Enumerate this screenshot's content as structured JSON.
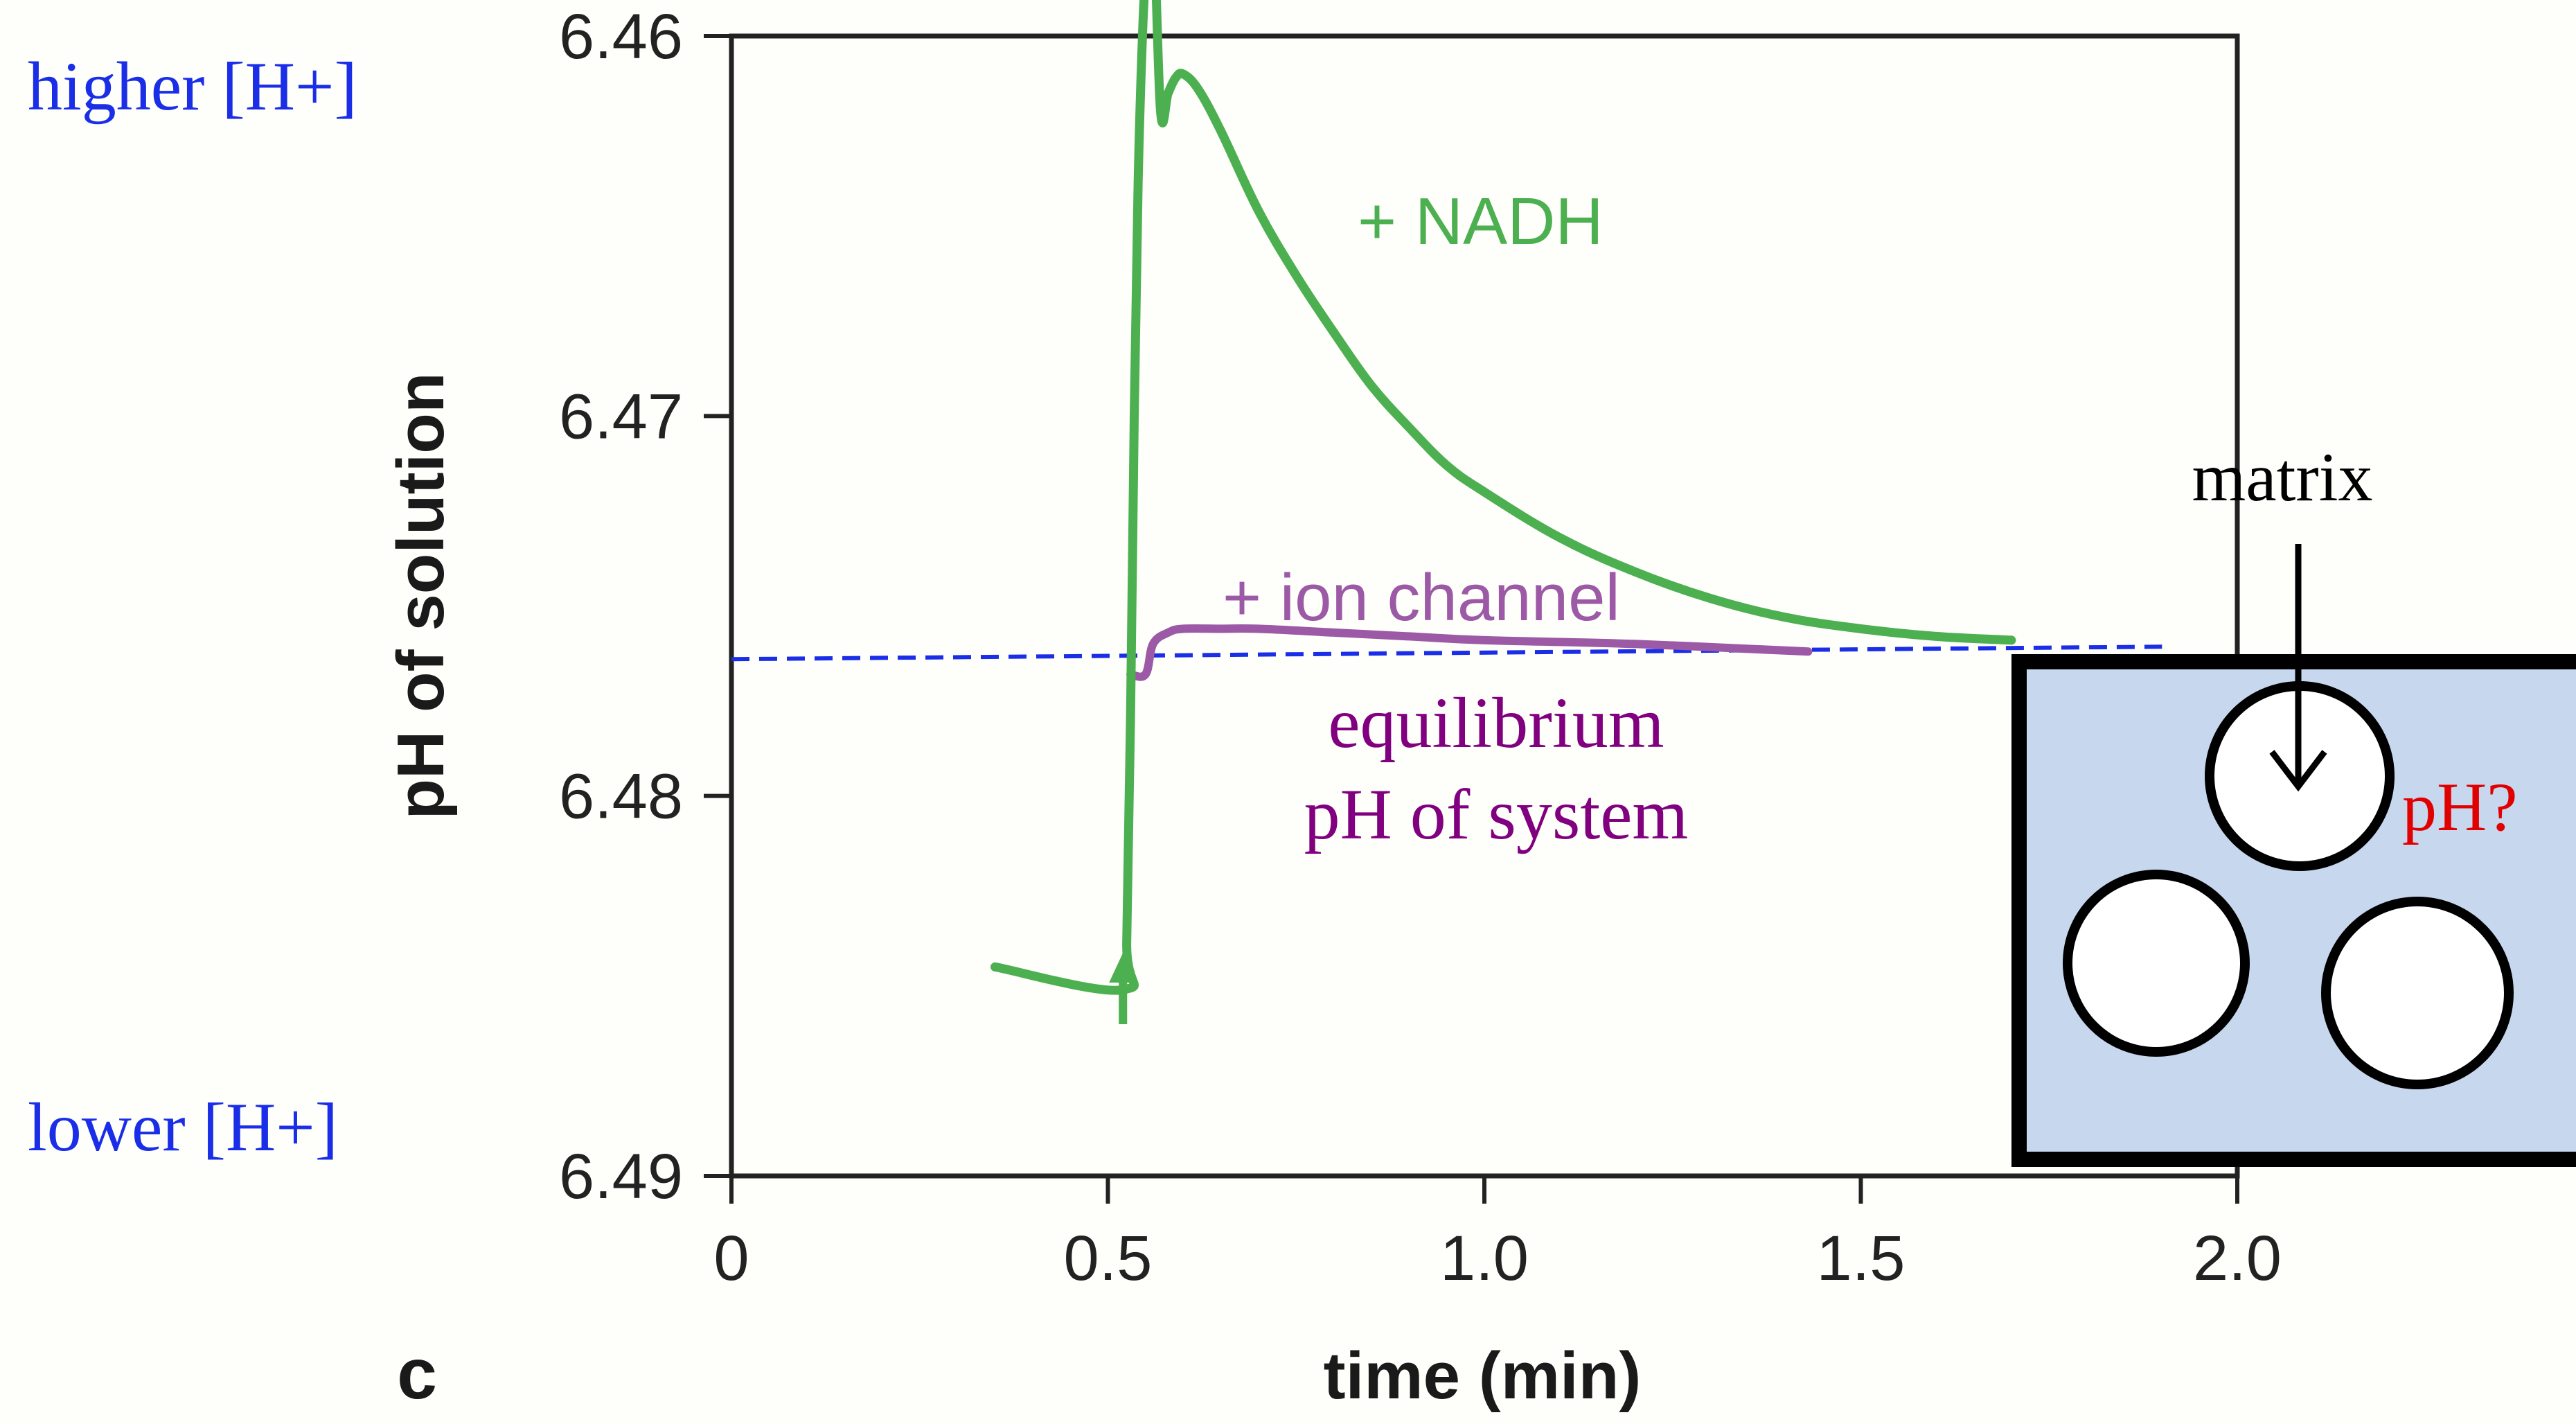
{
  "chart_data": {
    "type": "line",
    "panel_label": "c",
    "xlabel": "time (min)",
    "ylabel": "pH of solution",
    "xlim": [
      0,
      2.0
    ],
    "ylim": [
      6.49,
      6.46
    ],
    "y_inverted": true,
    "grid": false,
    "x_ticks": [
      0,
      0.5,
      1.0,
      1.5,
      2.0
    ],
    "x_tick_labels": [
      "0",
      "0.5",
      "1.0",
      "1.5",
      "2.0"
    ],
    "y_ticks": [
      6.46,
      6.47,
      6.48,
      6.49
    ],
    "y_tick_labels": [
      "6.46",
      "6.47",
      "6.48",
      "6.49"
    ],
    "series": [
      {
        "name": "+ NADH",
        "color": "#4caf50",
        "x": [
          0.35,
          0.52,
          0.525,
          0.53,
          0.535,
          0.54,
          0.545,
          0.55,
          0.56,
          0.57,
          0.58,
          0.59,
          0.6,
          0.62,
          0.65,
          0.7,
          0.75,
          0.8,
          0.85,
          0.9,
          0.95,
          1.0,
          1.1,
          1.2,
          1.3,
          1.4,
          1.5,
          1.6,
          1.7
        ],
        "y": [
          6.4845,
          6.4851,
          6.4838,
          6.478,
          6.47,
          6.464,
          6.4605,
          6.4585,
          6.457,
          6.462,
          6.4615,
          6.4611,
          6.461,
          6.4614,
          6.4625,
          6.4646,
          6.4663,
          6.4678,
          6.4692,
          6.4703,
          6.4713,
          6.472,
          6.4732,
          6.4741,
          6.4748,
          6.4753,
          6.4756,
          6.4758,
          6.4759
        ]
      },
      {
        "name": "+ ion channel",
        "color": "#9b59a6",
        "x": [
          0.53,
          0.55,
          0.56,
          0.58,
          0.6,
          0.65,
          0.7,
          0.8,
          0.9,
          1.0,
          1.2,
          1.43
        ],
        "y": [
          6.4768,
          6.4768,
          6.476,
          6.4757,
          6.4756,
          6.4756,
          6.4756,
          6.4757,
          6.4758,
          6.4759,
          6.476,
          6.4762
        ]
      }
    ],
    "reference_line": {
      "y": 6.4764,
      "x_range": [
        0,
        1.9
      ],
      "color": "#1a2ee8",
      "style": "dashed"
    },
    "addition_arrow": {
      "x": 0.52,
      "color": "#4caf50"
    },
    "annotations": {
      "higher": "higher  [H+]",
      "lower": "lower [H+]",
      "nadh": "+ NADH",
      "ion_channel": "+ ion channel",
      "equilibrium_line1": "equilibrium",
      "equilibrium_line2": "pH of system",
      "matrix": "matrix",
      "ph_question": "pH?"
    },
    "colors": {
      "blue_text": "#1a2ee8",
      "purple_text": "#800080",
      "red_text": "#e00000",
      "inset_fill": "#c6d7ee"
    }
  }
}
